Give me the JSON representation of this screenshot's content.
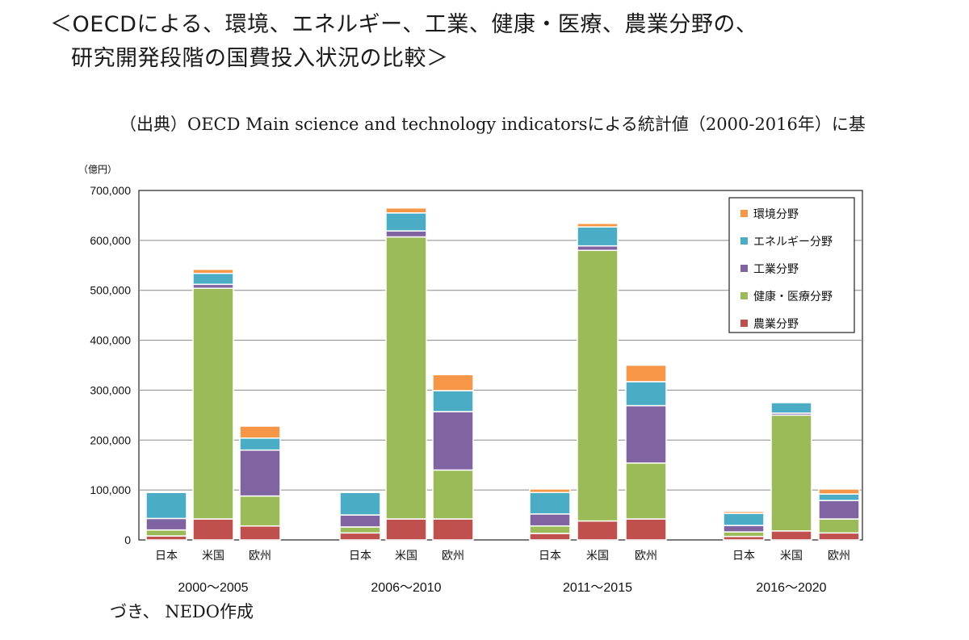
{
  "title": {
    "line1": "＜OECDによる、環境、エネルギー、工業、健康・医療、農業分野の、",
    "line2": "研究開発段階の国費投入状況の比較＞"
  },
  "source_note": "（出典）OECD Main science and technology indicatorsによる統計値（2000-2016年）に基",
  "footer_note": "づき、 NEDO作成",
  "colors": {
    "agriculture": "#c0504d",
    "health": "#9bbb59",
    "industry": "#8064a2",
    "energy": "#4bacc6",
    "environment": "#f79646"
  },
  "chart_data": {
    "type": "bar",
    "stacked": true,
    "y_unit_label": "（億円）",
    "ylim": [
      0,
      700000
    ],
    "yticks": [
      "0",
      "100,000",
      "200,000",
      "300,000",
      "400,000",
      "500,000",
      "600,000",
      "700,000"
    ],
    "grid": true,
    "legend_position": "top-right",
    "groups": [
      "2000～2005",
      "2006～2010",
      "2011～2015",
      "2016～2020"
    ],
    "countries": [
      "日本",
      "米国",
      "欧州"
    ],
    "categories": [
      "日本",
      "米国",
      "欧州",
      "日本",
      "米国",
      "欧州",
      "日本",
      "米国",
      "欧州",
      "日本",
      "米国",
      "欧州"
    ],
    "series": [
      {
        "name": "農業分野",
        "key": "agriculture",
        "values": [
          8000,
          42000,
          28000,
          14000,
          42000,
          42000,
          13000,
          38000,
          42000,
          7000,
          18000,
          14000
        ]
      },
      {
        "name": "健康・医療分野",
        "key": "health",
        "values": [
          12000,
          462000,
          60000,
          12000,
          565000,
          98000,
          15000,
          542000,
          112000,
          9000,
          232000,
          28000
        ]
      },
      {
        "name": "工業分野",
        "key": "industry",
        "values": [
          23000,
          8000,
          92000,
          24000,
          12000,
          117000,
          24000,
          9000,
          115000,
          13000,
          4000,
          37000
        ]
      },
      {
        "name": "エネルギー分野",
        "key": "energy",
        "values": [
          52000,
          22000,
          24000,
          45000,
          36000,
          42000,
          43000,
          38000,
          48000,
          24000,
          21000,
          13000
        ]
      },
      {
        "name": "環境分野",
        "key": "environment",
        "values": [
          0,
          8000,
          24000,
          0,
          10000,
          32000,
          7000,
          7000,
          33000,
          4000,
          0,
          10000
        ]
      }
    ],
    "legend_order": [
      "環境分野",
      "エネルギー分野",
      "工業分野",
      "健康・医療分野",
      "農業分野"
    ]
  }
}
